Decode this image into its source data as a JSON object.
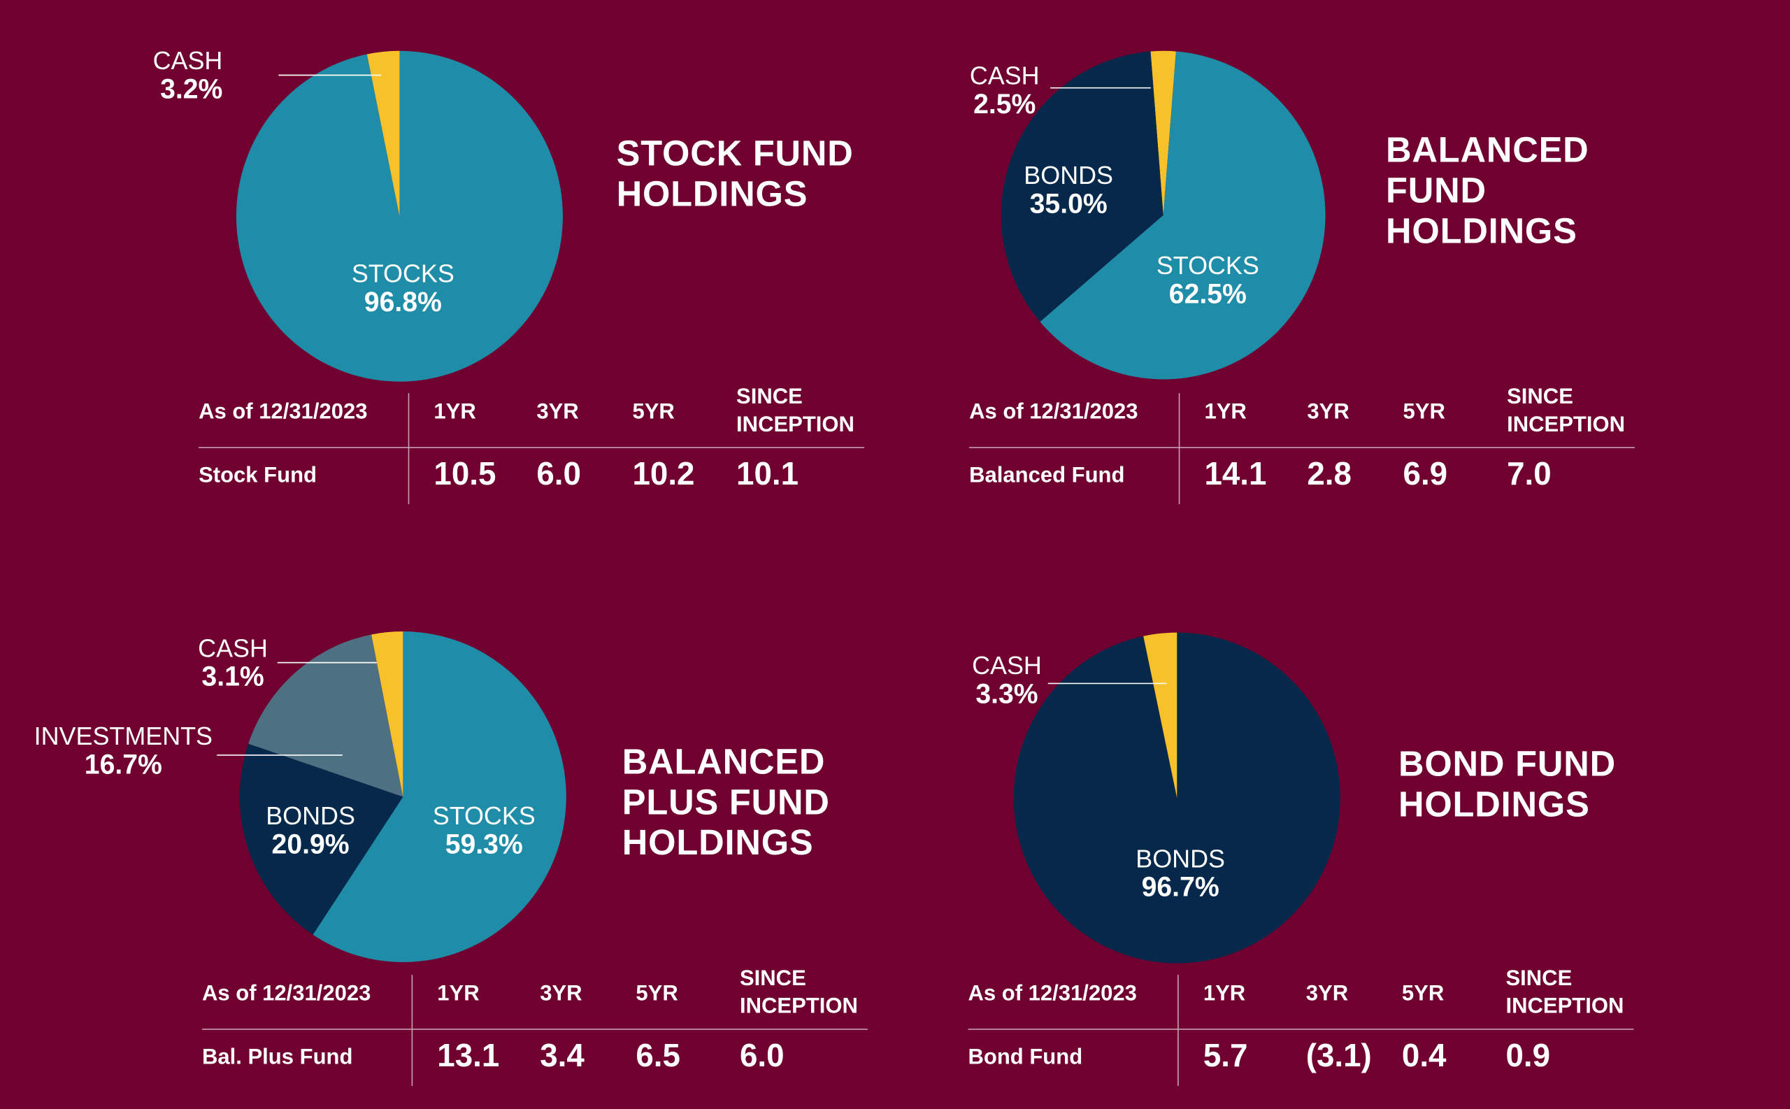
{
  "chart_data": [
    {
      "type": "pie",
      "title": "STOCK FUND HOLDINGS",
      "categories": [
        "STOCKS",
        "CASH"
      ],
      "values": [
        96.8,
        3.2
      ],
      "value_labels": [
        "96.8%",
        "3.2%"
      ],
      "colors": [
        "#1f8ca8",
        "#f7c12b"
      ],
      "table": {
        "columns": [
          "As of 12/31/2023",
          "1YR",
          "3YR",
          "5YR",
          "SINCE INCEPTION"
        ],
        "rows": [
          [
            "Stock Fund",
            "10.5",
            "6.0",
            "10.2",
            "10.1"
          ]
        ]
      }
    },
    {
      "type": "pie",
      "title": "BALANCED FUND HOLDINGS",
      "categories": [
        "CASH",
        "STOCKS",
        "BONDS"
      ],
      "values": [
        2.5,
        62.5,
        35.0
      ],
      "value_labels": [
        "2.5%",
        "62.5%",
        "35.0%"
      ],
      "colors": [
        "#f7c12b",
        "#1f8ca8",
        "#06294b"
      ],
      "table": {
        "columns": [
          "As of 12/31/2023",
          "1YR",
          "3YR",
          "5YR",
          "SINCE INCEPTION"
        ],
        "rows": [
          [
            "Balanced Fund",
            "14.1",
            "2.8",
            "6.9",
            "7.0"
          ]
        ]
      }
    },
    {
      "type": "pie",
      "title": "BALANCED PLUS FUND HOLDINGS",
      "categories": [
        "STOCKS",
        "BONDS",
        "INVESTMENTS",
        "CASH"
      ],
      "values": [
        59.3,
        20.9,
        16.7,
        3.1
      ],
      "value_labels": [
        "59.3%",
        "20.9%",
        "16.7%",
        "3.1%"
      ],
      "colors": [
        "#1f8ca8",
        "#06294b",
        "#4d7082",
        "#f7c12b"
      ],
      "table": {
        "columns": [
          "As of 12/31/2023",
          "1YR",
          "3YR",
          "5YR",
          "SINCE INCEPTION"
        ],
        "rows": [
          [
            "Bal. Plus Fund",
            "13.1",
            "3.4",
            "6.5",
            "6.0"
          ]
        ]
      }
    },
    {
      "type": "pie",
      "title": "BOND FUND HOLDINGS",
      "categories": [
        "BONDS",
        "CASH"
      ],
      "values": [
        96.7,
        3.3
      ],
      "value_labels": [
        "96.7%",
        "3.3%"
      ],
      "colors": [
        "#06294b",
        "#f7c12b"
      ],
      "table": {
        "columns": [
          "As of 12/31/2023",
          "1YR",
          "3YR",
          "5YR",
          "SINCE INCEPTION"
        ],
        "rows": [
          [
            "Bond Fund",
            "5.7",
            "(3.1)",
            "0.4",
            "0.9"
          ]
        ]
      }
    }
  ]
}
